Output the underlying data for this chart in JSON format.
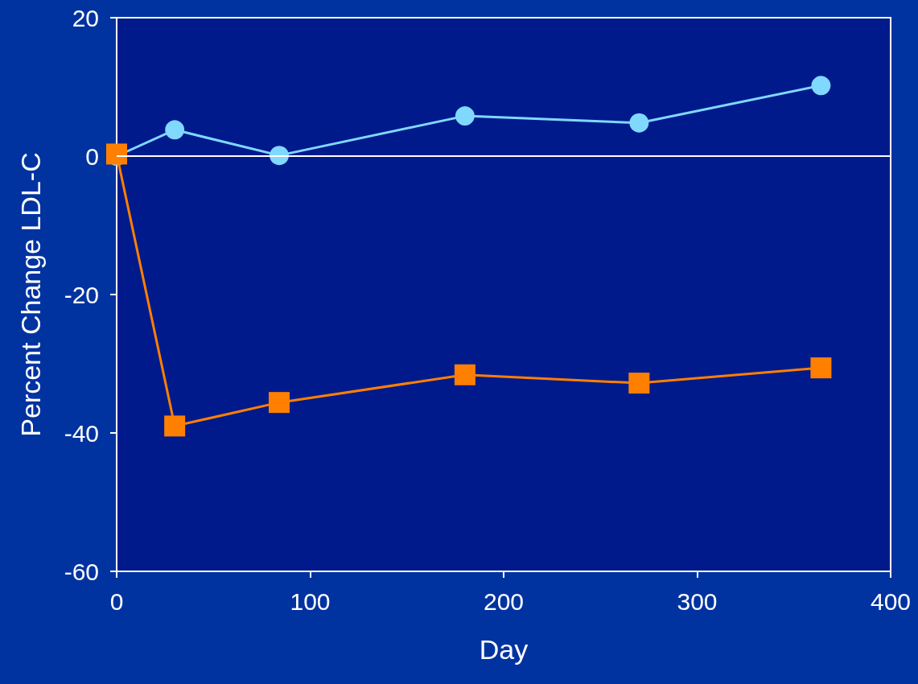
{
  "chart_data": {
    "type": "line",
    "xlabel": "Day",
    "ylabel": "Percent Change LDL-C",
    "xlim": [
      0,
      400
    ],
    "xticks": [
      0,
      100,
      200,
      300,
      400
    ],
    "ylim": [
      -60,
      20
    ],
    "yticks": [
      -60,
      -40,
      -20,
      0,
      20
    ],
    "grid": false,
    "line_style": "solid",
    "ref_lines": [
      {
        "axis": "y",
        "value": 0,
        "color": "#ffffff"
      }
    ],
    "series": [
      {
        "color": "#80d8ff",
        "marker": "circle",
        "x": [
          0,
          30,
          84,
          180,
          270,
          364
        ],
        "values": [
          0,
          3.8,
          0.1,
          5.8,
          4.8,
          10.2
        ]
      },
      {
        "color": "#ff8000",
        "marker": "square",
        "x": [
          0,
          30,
          84,
          180,
          270,
          364
        ],
        "values": [
          0.3,
          -39,
          -35.6,
          -31.6,
          -32.8,
          -30.6
        ]
      }
    ]
  }
}
